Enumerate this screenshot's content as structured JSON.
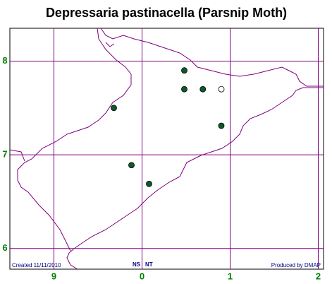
{
  "chart_data": {
    "type": "scatter",
    "title": "Depressaria pastinacella (Parsnip Moth)",
    "annotations": [
      "Created 11/11/2010",
      "NS",
      "NT",
      "Produced by DMAP"
    ],
    "xlim": [
      8.5,
      12.06
    ],
    "ylim": [
      5.78,
      8.35
    ],
    "xticks": [
      {
        "value": 9,
        "label": "9"
      },
      {
        "value": 10,
        "label": "0"
      },
      {
        "value": 11,
        "label": "1"
      },
      {
        "value": 12,
        "label": "2"
      }
    ],
    "yticks": [
      6,
      7,
      8
    ],
    "grid": true,
    "grid_color": "#800080",
    "series": [
      {
        "color": "#0b5a2a",
        "x": [
          10.48,
          10.48,
          10.69,
          9.68,
          10.9,
          9.88,
          10.08
        ],
        "values": [
          7.9,
          7.7,
          7.7,
          7.5,
          7.31,
          6.89,
          6.69
        ]
      },
      {
        "color": "#ffffff",
        "x": [
          10.9
        ],
        "values": [
          7.7
        ]
      }
    ]
  }
}
